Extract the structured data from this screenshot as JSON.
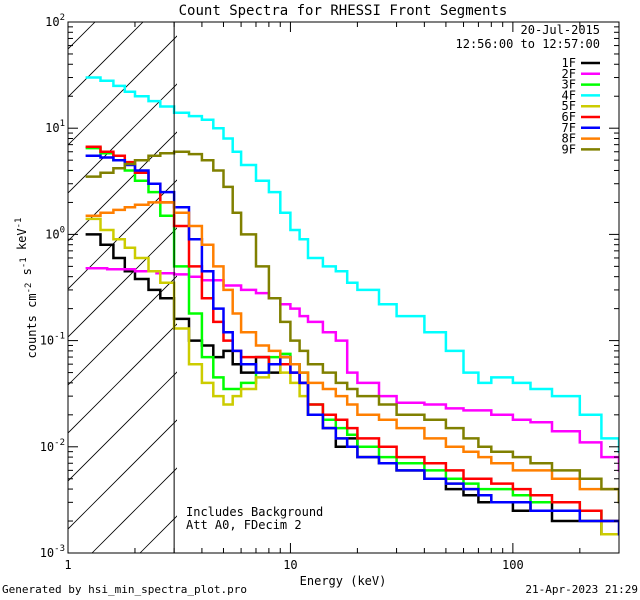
{
  "chart_data": {
    "type": "line",
    "title": "Count Spectra for RHESSI Front Segments",
    "xlabel": "Energy (keV)",
    "ylabel": "counts cm-2 s-1 keV-1",
    "xscale": "log",
    "yscale": "log",
    "xlim": [
      1,
      300
    ],
    "ylim": [
      0.001,
      100
    ],
    "x_ticks": [
      1,
      10,
      100
    ],
    "x_tick_labels": [
      "1",
      "10",
      "100"
    ],
    "y_ticks": [
      0.001,
      0.01,
      0.1,
      1,
      10,
      100
    ],
    "y_tick_exponents": [
      "-3",
      "-2",
      "-1",
      "0",
      "1",
      "2"
    ],
    "date": "20-Jul-2015",
    "time_range": "12:56:00 to 12:57:00",
    "annotations": [
      "Includes Background",
      "Att A0, FDecim 2"
    ],
    "threshold_keV": 3,
    "series": [
      {
        "name": "1F",
        "color": "#000000",
        "x": [
          1.2,
          1.4,
          1.6,
          1.8,
          2.0,
          2.3,
          2.6,
          3.0,
          3.5,
          4.0,
          4.5,
          5.0,
          5.5,
          6.0,
          7,
          8,
          9,
          10,
          11,
          12,
          14,
          16,
          18,
          20,
          25,
          30,
          40,
          50,
          60,
          70,
          80,
          100,
          120,
          150,
          200,
          250,
          300
        ],
        "y": [
          1.0,
          0.8,
          0.6,
          0.45,
          0.38,
          0.3,
          0.25,
          0.16,
          0.1,
          0.09,
          0.07,
          0.08,
          0.06,
          0.05,
          0.07,
          0.05,
          0.07,
          0.06,
          0.04,
          0.02,
          0.015,
          0.01,
          0.012,
          0.008,
          0.007,
          0.006,
          0.005,
          0.004,
          0.0035,
          0.003,
          0.003,
          0.0025,
          0.003,
          0.002,
          0.002,
          0.0015,
          0.0015
        ]
      },
      {
        "name": "2F",
        "color": "#ff00ff",
        "x": [
          1.2,
          1.5,
          2.0,
          2.5,
          3.0,
          3.5,
          4.0,
          5.0,
          6.0,
          7,
          8,
          9,
          10,
          11,
          12,
          14,
          16,
          18,
          20,
          25,
          30,
          40,
          50,
          60,
          80,
          100,
          120,
          150,
          200,
          250,
          300
        ],
        "y": [
          0.48,
          0.47,
          0.45,
          0.43,
          0.42,
          0.4,
          0.37,
          0.33,
          0.3,
          0.28,
          0.25,
          0.22,
          0.2,
          0.17,
          0.15,
          0.12,
          0.1,
          0.05,
          0.04,
          0.03,
          0.026,
          0.025,
          0.023,
          0.022,
          0.02,
          0.018,
          0.017,
          0.014,
          0.011,
          0.008,
          0.006
        ]
      },
      {
        "name": "3F",
        "color": "#00ff00",
        "x": [
          1.2,
          1.4,
          1.6,
          1.8,
          2.0,
          2.3,
          2.6,
          3.0,
          3.5,
          4.0,
          4.5,
          5.0,
          5.5,
          6.0,
          7,
          8,
          9,
          10,
          11,
          12,
          14,
          16,
          18,
          20,
          25,
          30,
          40,
          50,
          60,
          70,
          80,
          100,
          120,
          150,
          200,
          250,
          300
        ],
        "y": [
          6.5,
          5.8,
          5.0,
          4.0,
          3.2,
          2.5,
          1.5,
          0.5,
          0.18,
          0.07,
          0.045,
          0.035,
          0.035,
          0.04,
          0.05,
          0.07,
          0.075,
          0.06,
          0.05,
          0.025,
          0.018,
          0.015,
          0.013,
          0.01,
          0.008,
          0.007,
          0.006,
          0.005,
          0.0045,
          0.004,
          0.004,
          0.0035,
          0.003,
          0.003,
          0.0025,
          0.002,
          0.002
        ]
      },
      {
        "name": "4F",
        "color": "#00ffff",
        "x": [
          1.2,
          1.4,
          1.6,
          1.8,
          2.0,
          2.3,
          2.6,
          3.0,
          3.5,
          4.0,
          4.5,
          5.0,
          5.5,
          6.0,
          7,
          8,
          9,
          10,
          11,
          12,
          14,
          16,
          18,
          20,
          25,
          30,
          40,
          50,
          60,
          70,
          80,
          100,
          120,
          150,
          200,
          250,
          300
        ],
        "y": [
          30,
          28,
          25,
          22,
          20,
          18,
          16,
          14,
          13,
          12,
          10,
          8,
          6,
          4.5,
          3.2,
          2.5,
          1.6,
          1.1,
          0.9,
          0.6,
          0.5,
          0.45,
          0.35,
          0.3,
          0.22,
          0.17,
          0.12,
          0.08,
          0.05,
          0.04,
          0.045,
          0.04,
          0.035,
          0.03,
          0.02,
          0.012,
          0.009
        ]
      },
      {
        "name": "5F",
        "color": "#cccc00",
        "x": [
          1.2,
          1.4,
          1.6,
          1.8,
          2.0,
          2.3,
          2.6,
          3.0,
          3.5,
          4.0,
          4.5,
          5.0,
          5.5,
          6.0,
          7,
          8,
          9,
          10,
          11,
          12,
          14,
          16,
          18,
          20,
          25,
          30,
          40,
          50,
          60,
          70,
          80,
          100,
          120,
          150,
          200,
          250,
          300
        ],
        "y": [
          1.4,
          1.1,
          0.9,
          0.75,
          0.6,
          0.45,
          0.35,
          0.13,
          0.06,
          0.04,
          0.03,
          0.025,
          0.03,
          0.035,
          0.045,
          0.06,
          0.05,
          0.04,
          0.03,
          0.02,
          0.015,
          0.012,
          0.01,
          0.008,
          0.007,
          0.006,
          0.005,
          0.0045,
          0.004,
          0.0035,
          0.003,
          0.003,
          0.0025,
          0.0025,
          0.002,
          0.0015,
          0.0015
        ]
      },
      {
        "name": "6F",
        "color": "#ff0000",
        "x": [
          1.2,
          1.4,
          1.6,
          1.8,
          2.0,
          2.3,
          2.6,
          3.0,
          3.5,
          4.0,
          4.5,
          5.0,
          5.5,
          6.0,
          7,
          8,
          9,
          10,
          11,
          12,
          14,
          16,
          18,
          20,
          25,
          30,
          40,
          50,
          60,
          70,
          80,
          100,
          120,
          150,
          200,
          250,
          300
        ],
        "y": [
          6.7,
          6.0,
          5.5,
          4.8,
          3.8,
          3.0,
          2.0,
          1.2,
          0.5,
          0.25,
          0.15,
          0.1,
          0.08,
          0.07,
          0.07,
          0.06,
          0.06,
          0.05,
          0.04,
          0.025,
          0.02,
          0.018,
          0.015,
          0.012,
          0.01,
          0.008,
          0.007,
          0.006,
          0.005,
          0.005,
          0.0045,
          0.004,
          0.0035,
          0.003,
          0.0025,
          0.002,
          0.002
        ]
      },
      {
        "name": "7F",
        "color": "#0000ff",
        "x": [
          1.2,
          1.4,
          1.6,
          1.8,
          2.0,
          2.3,
          2.6,
          3.0,
          3.5,
          4.0,
          4.5,
          5.0,
          5.5,
          6.0,
          7,
          8,
          9,
          10,
          11,
          12,
          14,
          16,
          18,
          20,
          25,
          30,
          40,
          50,
          60,
          70,
          80,
          100,
          120,
          150,
          200,
          250,
          300
        ],
        "y": [
          5.5,
          5.3,
          5.0,
          4.5,
          4.0,
          3.0,
          2.5,
          1.8,
          0.9,
          0.45,
          0.2,
          0.12,
          0.08,
          0.06,
          0.05,
          0.06,
          0.07,
          0.05,
          0.04,
          0.02,
          0.015,
          0.012,
          0.01,
          0.008,
          0.007,
          0.006,
          0.005,
          0.0045,
          0.004,
          0.0035,
          0.003,
          0.003,
          0.0025,
          0.0025,
          0.002,
          0.002,
          0.0015
        ]
      },
      {
        "name": "8F",
        "color": "#ff7f00",
        "x": [
          1.2,
          1.4,
          1.6,
          1.8,
          2.0,
          2.3,
          2.6,
          3.0,
          3.5,
          4.0,
          4.5,
          5.0,
          5.5,
          6.0,
          7,
          8,
          9,
          10,
          11,
          12,
          14,
          16,
          18,
          20,
          25,
          30,
          40,
          50,
          60,
          70,
          80,
          100,
          120,
          150,
          200,
          250,
          300
        ],
        "y": [
          1.5,
          1.6,
          1.7,
          1.8,
          1.9,
          2.0,
          2.0,
          1.6,
          1.2,
          0.8,
          0.5,
          0.3,
          0.18,
          0.12,
          0.09,
          0.08,
          0.07,
          0.06,
          0.05,
          0.04,
          0.035,
          0.03,
          0.025,
          0.02,
          0.018,
          0.015,
          0.012,
          0.01,
          0.009,
          0.008,
          0.007,
          0.006,
          0.006,
          0.005,
          0.004,
          0.004,
          0.003
        ]
      },
      {
        "name": "9F",
        "color": "#808000",
        "x": [
          1.2,
          1.4,
          1.6,
          1.8,
          2.0,
          2.3,
          2.6,
          3.0,
          3.5,
          4.0,
          4.5,
          5.0,
          5.5,
          6.0,
          7,
          8,
          9,
          10,
          11,
          12,
          14,
          16,
          18,
          20,
          25,
          30,
          40,
          50,
          60,
          70,
          80,
          100,
          120,
          150,
          200,
          250,
          300
        ],
        "y": [
          3.5,
          3.8,
          4.2,
          4.6,
          5.0,
          5.5,
          5.8,
          6.0,
          5.7,
          5.0,
          4.0,
          2.8,
          1.6,
          1.0,
          0.5,
          0.25,
          0.15,
          0.1,
          0.08,
          0.06,
          0.05,
          0.04,
          0.035,
          0.03,
          0.025,
          0.02,
          0.018,
          0.015,
          0.012,
          0.01,
          0.009,
          0.008,
          0.007,
          0.006,
          0.005,
          0.004,
          0.003
        ]
      }
    ]
  },
  "footer": {
    "generated_by": "Generated by hsi_min_spectra_plot.pro",
    "timestamp": "21-Apr-2023 21:29"
  }
}
